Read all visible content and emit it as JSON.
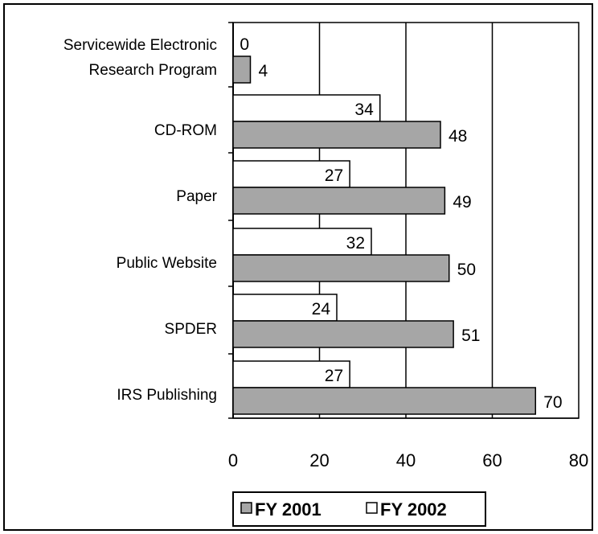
{
  "chart_data": {
    "type": "bar",
    "orientation": "horizontal",
    "categories": [
      "Servicewide Electronic Research Program",
      "CD-ROM",
      "Paper",
      "Public Website",
      "SPDER",
      "IRS Publishing"
    ],
    "category_lines": [
      [
        "Servicewide Electronic",
        "Research Program"
      ],
      [
        "CD-ROM"
      ],
      [
        "Paper"
      ],
      [
        "Public Website"
      ],
      [
        "SPDER"
      ],
      [
        "IRS Publishing"
      ]
    ],
    "series": [
      {
        "name": "FY 2001",
        "color": "#a6a6a6",
        "values": [
          4,
          48,
          49,
          50,
          51,
          70
        ]
      },
      {
        "name": "FY 2002",
        "color": "#ffffff",
        "values": [
          0,
          34,
          27,
          32,
          24,
          27
        ]
      }
    ],
    "xlim": [
      0,
      80
    ],
    "xticks": [
      0,
      20,
      40,
      60,
      80
    ],
    "grid": true,
    "legend_position": "bottom",
    "title": "",
    "xlabel": "",
    "ylabel": ""
  }
}
